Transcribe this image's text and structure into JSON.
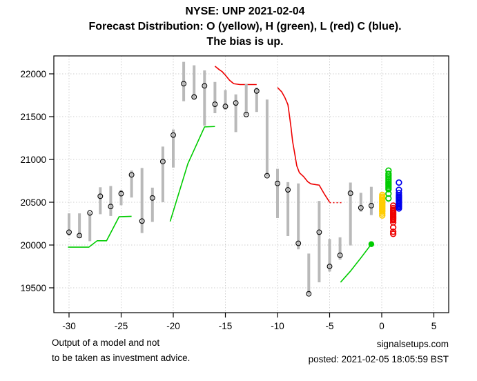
{
  "title": {
    "line1": "NYSE: UNP 2021-02-04",
    "line2": "Forecast Distribution: O (yellow), H (green), L (red) C (blue).",
    "line3": "The bias is up."
  },
  "footer": {
    "disclaimer_line1": "Output of a model and not",
    "disclaimer_line2": "to be taken as investment advice.",
    "site": "signalsetups.com",
    "posted": "posted: 2021-02-05 18:05:59 BST"
  },
  "colors": {
    "bar_gray": "#b9b9b9",
    "marker_black": "#000000",
    "open_yellow": "#ffcc00",
    "high_green": "#00cc00",
    "low_red": "#ee0000",
    "close_blue": "#0000ee",
    "grid_gray": "#cfcfcf"
  },
  "chart_data": {
    "type": "mixed",
    "subtype": "HLC price bars + support/resistance lines + forecast distribution scatter",
    "title": "NYSE: UNP 2021-02-04 / Forecast Distribution: O (yellow), H (green), L (red) C (blue). The bias is up.",
    "xlabel": "",
    "ylabel": "",
    "grid": "dotted",
    "legend_position": "in-title",
    "series_legend": [
      {
        "symbol": "O",
        "meaning": "Open forecast",
        "color": "yellow"
      },
      {
        "symbol": "H",
        "meaning": "High forecast",
        "color": "green"
      },
      {
        "symbol": "L",
        "meaning": "Low forecast",
        "color": "red"
      },
      {
        "symbol": "C",
        "meaning": "Close forecast",
        "color": "blue"
      }
    ],
    "x_axis": {
      "ticks": [
        -30,
        -25,
        -20,
        -15,
        -10,
        -5,
        0,
        5
      ],
      "range": [
        -31.5,
        6.4
      ]
    },
    "y_axis": {
      "ticks": [
        19500,
        20000,
        20500,
        21000,
        21500,
        22000
      ],
      "range": [
        19210,
        22210
      ]
    },
    "bars": [
      {
        "x": -30,
        "high": 20370,
        "low": 20110,
        "close": 20150
      },
      {
        "x": -29,
        "high": 20370,
        "low": 20085,
        "close": 20110
      },
      {
        "x": -28,
        "high": 20385,
        "low": 20045,
        "close": 20375
      },
      {
        "x": -27,
        "high": 20675,
        "low": 20360,
        "close": 20570
      },
      {
        "x": -26,
        "high": 20690,
        "low": 20340,
        "close": 20450
      },
      {
        "x": -25,
        "high": 20645,
        "low": 20465,
        "close": 20600
      },
      {
        "x": -24,
        "high": 20870,
        "low": 20555,
        "close": 20820
      },
      {
        "x": -23,
        "high": 20900,
        "low": 20140,
        "close": 20280
      },
      {
        "x": -22,
        "high": 20670,
        "low": 20270,
        "close": 20550
      },
      {
        "x": -21,
        "high": 21150,
        "low": 20500,
        "close": 20975
      },
      {
        "x": -20,
        "high": 21350,
        "low": 20905,
        "close": 21285
      },
      {
        "x": -19,
        "high": 22140,
        "low": 21680,
        "close": 21885
      },
      {
        "x": -18,
        "high": 22100,
        "low": 21700,
        "close": 21730
      },
      {
        "x": -17,
        "high": 22040,
        "low": 21395,
        "close": 21860
      },
      {
        "x": -16,
        "high": 21905,
        "low": 21540,
        "close": 21645
      },
      {
        "x": -15,
        "high": 21810,
        "low": 21580,
        "close": 21620
      },
      {
        "x": -14,
        "high": 21760,
        "low": 21320,
        "close": 21660
      },
      {
        "x": -13,
        "high": 21880,
        "low": 21515,
        "close": 21525
      },
      {
        "x": -12,
        "high": 21840,
        "low": 21555,
        "close": 21800
      },
      {
        "x": -11,
        "high": 21700,
        "low": 20800,
        "close": 20810
      },
      {
        "x": -10,
        "high": 20890,
        "low": 20315,
        "close": 20720
      },
      {
        "x": -9,
        "high": 20735,
        "low": 20105,
        "close": 20645
      },
      {
        "x": -8,
        "high": 20720,
        "low": 19950,
        "close": 20020
      },
      {
        "x": -7,
        "high": 19900,
        "low": 19420,
        "close": 19430
      },
      {
        "x": -6,
        "high": 20515,
        "low": 19565,
        "close": 20150
      },
      {
        "x": -5,
        "high": 20070,
        "low": 19690,
        "close": 19750
      },
      {
        "x": -4,
        "high": 20090,
        "low": 19830,
        "close": 19880
      },
      {
        "x": -3,
        "high": 20730,
        "low": 19995,
        "close": 20605
      },
      {
        "x": -2,
        "high": 20610,
        "low": 20390,
        "close": 20435
      },
      {
        "x": -1,
        "high": 20680,
        "low": 20350,
        "close": 20460
      }
    ],
    "support_line_green": {
      "segments": [
        [
          [
            -30.1,
            19975
          ],
          [
            -28.1,
            19975
          ],
          [
            -27.3,
            20050
          ],
          [
            -26.4,
            20050
          ],
          [
            -25.2,
            20330
          ],
          [
            -24,
            20335
          ]
        ],
        [
          [
            -20.3,
            20275
          ],
          [
            -18.6,
            20950
          ],
          [
            -17,
            21380
          ],
          [
            -16,
            21385
          ]
        ],
        [
          [
            -3.95,
            19565
          ],
          [
            -3,
            19695
          ],
          [
            -2,
            19850
          ],
          [
            -1,
            20010
          ]
        ]
      ],
      "end_dot": {
        "x": -1,
        "value": 20010
      }
    },
    "resistance_line_red": {
      "segments": [
        [
          [
            -16,
            22090
          ],
          [
            -15.6,
            22050
          ],
          [
            -15.3,
            22025
          ],
          [
            -15,
            21985
          ],
          [
            -14.6,
            21925
          ],
          [
            -14.2,
            21885
          ],
          [
            -13.6,
            21875
          ],
          [
            -12,
            21875
          ]
        ],
        [
          [
            -10,
            21840
          ],
          [
            -9.6,
            21790
          ],
          [
            -9.3,
            21725
          ],
          [
            -9,
            21640
          ],
          [
            -8.85,
            21510
          ],
          [
            -8.7,
            21370
          ],
          [
            -8.55,
            21210
          ],
          [
            -8.35,
            21070
          ],
          [
            -8.15,
            20925
          ],
          [
            -7.9,
            20845
          ],
          [
            -7.5,
            20800
          ],
          [
            -7.1,
            20740
          ],
          [
            -6.8,
            20715
          ],
          [
            -6.3,
            20705
          ],
          [
            -6,
            20700
          ],
          [
            -5.5,
            20595
          ],
          [
            -5,
            20500
          ]
        ]
      ],
      "dotted_tail": [
        [
          -5,
          20495
        ],
        [
          -3.8,
          20495
        ]
      ]
    },
    "forecast_clusters": [
      {
        "name": "open",
        "label": "O",
        "color": "#ffcc00",
        "x": 0.05,
        "values": [
          20585,
          20565,
          20548,
          20532,
          20517,
          20503,
          20489,
          20475,
          20461,
          20447,
          20433,
          20419,
          20405,
          20390,
          20368,
          20345
        ]
      },
      {
        "name": "high",
        "label": "H",
        "color": "#00cc00",
        "x": 0.65,
        "values": [
          20870,
          20832,
          20812,
          20793,
          20775,
          20757,
          20739,
          20721,
          20704,
          20687,
          20670,
          20652,
          20600,
          20545
        ]
      },
      {
        "name": "low",
        "label": "L",
        "color": "#ee0000",
        "x": 1.1,
        "values": [
          20460,
          20432,
          20412,
          20396,
          20381,
          20366,
          20351,
          20336,
          20321,
          20306,
          20291,
          20265,
          20205,
          20155,
          20130
        ]
      },
      {
        "name": "close",
        "label": "C",
        "color": "#0000ee",
        "x": 1.65,
        "values": [
          20730,
          20645,
          20610,
          20582,
          20566,
          20551,
          20536,
          20521,
          20506,
          20491,
          20476,
          20461,
          20446,
          20428
        ]
      }
    ]
  }
}
